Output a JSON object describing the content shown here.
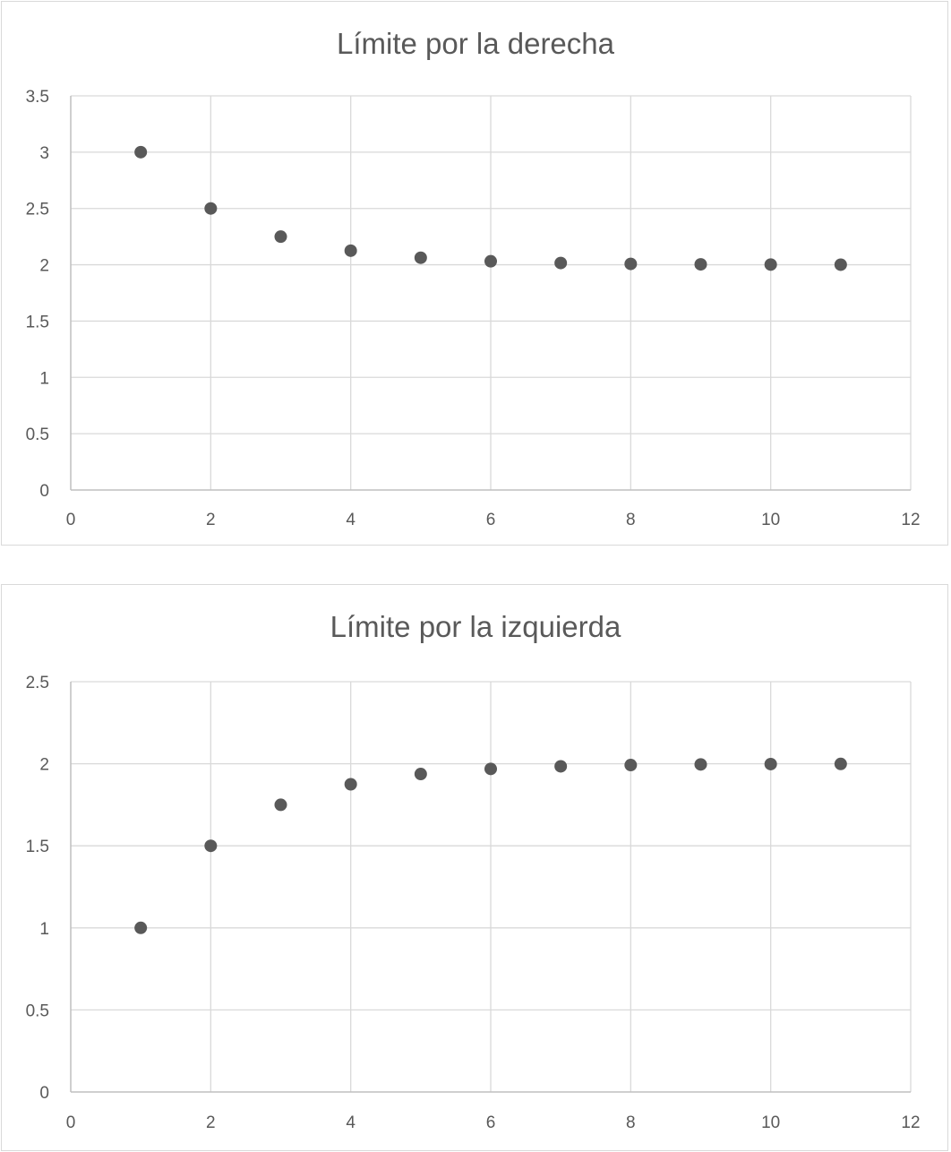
{
  "chart_data": [
    {
      "type": "scatter",
      "title": "Límite por la derecha",
      "xlabel": "",
      "ylabel": "",
      "xlim": [
        0,
        12
      ],
      "ylim": [
        0,
        3.5
      ],
      "x_ticks": [
        0,
        2,
        4,
        6,
        8,
        10,
        12
      ],
      "x_tick_labels": [
        "0",
        "2",
        "4",
        "6",
        "8",
        "10",
        "12"
      ],
      "y_ticks": [
        0,
        0.5,
        1,
        1.5,
        2,
        2.5,
        3,
        3.5
      ],
      "y_tick_labels": [
        "0",
        "0.5",
        "1",
        "1.5",
        "2",
        "2.5",
        "3",
        "3.5"
      ],
      "grid": true,
      "legend": "none",
      "marker_color": "#595959",
      "series": [
        {
          "x": [
            1,
            2,
            3,
            4,
            5,
            6,
            7,
            8,
            9,
            10,
            11
          ],
          "y": [
            3,
            2.5,
            2.25,
            2.125,
            2.0625,
            2.03125,
            2.015625,
            2.0078125,
            2.00390625,
            2.001953125,
            2.0009765625
          ]
        }
      ]
    },
    {
      "type": "scatter",
      "title": "Límite por la izquierda",
      "xlabel": "",
      "ylabel": "",
      "xlim": [
        0,
        12
      ],
      "ylim": [
        0,
        2.5
      ],
      "x_ticks": [
        0,
        2,
        4,
        6,
        8,
        10,
        12
      ],
      "x_tick_labels": [
        "0",
        "2",
        "4",
        "6",
        "8",
        "10",
        "12"
      ],
      "y_ticks": [
        0,
        0.5,
        1,
        1.5,
        2,
        2.5
      ],
      "y_tick_labels": [
        "0",
        "0.5",
        "1",
        "1.5",
        "2",
        "2.5"
      ],
      "grid": true,
      "legend": "none",
      "marker_color": "#595959",
      "series": [
        {
          "x": [
            1,
            2,
            3,
            4,
            5,
            6,
            7,
            8,
            9,
            10,
            11
          ],
          "y": [
            1,
            1.5,
            1.75,
            1.875,
            1.9375,
            1.96875,
            1.984375,
            1.9921875,
            1.99609375,
            1.998046875,
            1.9990234375
          ]
        }
      ]
    }
  ]
}
